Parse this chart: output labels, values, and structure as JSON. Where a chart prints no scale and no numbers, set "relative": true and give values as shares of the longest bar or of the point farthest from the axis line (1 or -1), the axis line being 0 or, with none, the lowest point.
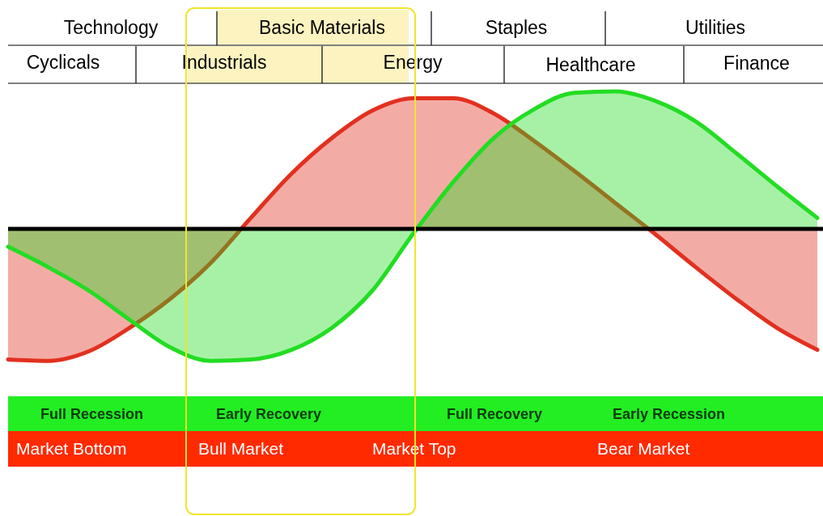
{
  "chart_data": {
    "type": "area",
    "relative": true,
    "categories": [
      null,
      null,
      null,
      null,
      null,
      null,
      null,
      null,
      null,
      null,
      null,
      null,
      null,
      null,
      null,
      null,
      null,
      null,
      null,
      null,
      null
    ],
    "series": [
      {
        "color": "#e2301f",
        "values": [
          -0.95,
          -0.96,
          -0.89,
          -0.72,
          -0.51,
          -0.25,
          0.08,
          0.4,
          0.66,
          0.86,
          0.95,
          0.95,
          0.84,
          0.64,
          0.42,
          0.19,
          -0.04,
          -0.28,
          -0.51,
          -0.72,
          -0.88
        ]
      },
      {
        "color": "#22dd22",
        "values": [
          -0.13,
          -0.28,
          -0.45,
          -0.66,
          -0.86,
          -0.96,
          -0.95,
          -0.88,
          -0.72,
          -0.45,
          -0.04,
          0.34,
          0.66,
          0.87,
          0.99,
          1,
          0.93,
          0.78,
          0.55,
          0.31,
          0.08
        ]
      }
    ],
    "annotations": [
      "Technology",
      "Basic Materials",
      "Staples",
      "Utilities",
      "Cyclicals",
      "Industrials",
      "Energy",
      "Healthcare",
      "Finance",
      "Full Recession",
      "Early Recovery",
      "Full Recovery",
      "Early Recession",
      "Market Bottom",
      "Bull Market",
      "Market Top",
      "Bear Market"
    ]
  }
}
